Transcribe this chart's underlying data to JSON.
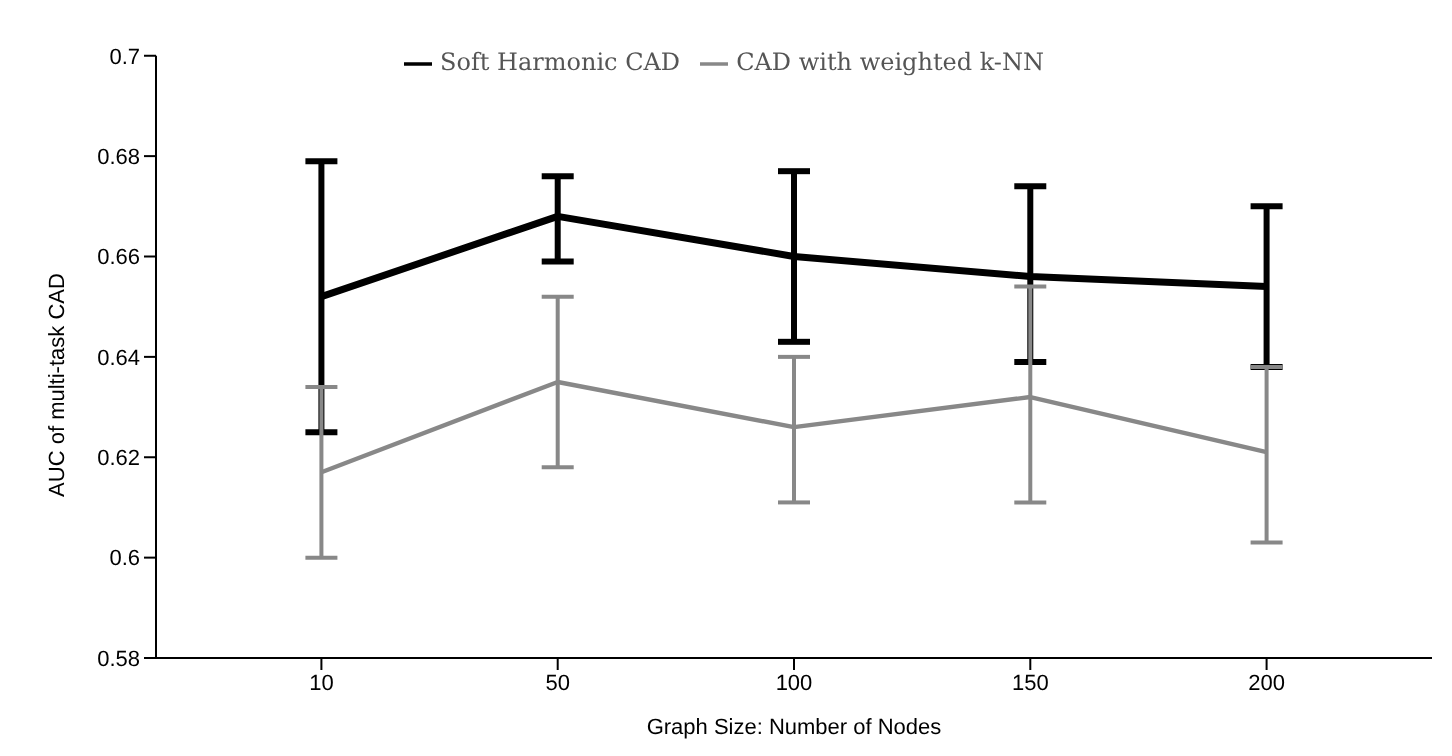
{
  "chart_data": {
    "type": "line",
    "xlabel": "Graph Size: Number of Nodes",
    "ylabel": "AUC of multi-task CAD",
    "categories": [
      "10",
      "50",
      "100",
      "150",
      "200"
    ],
    "series": [
      {
        "name": "Soft Harmonic CAD",
        "color": "#000000",
        "values": [
          0.652,
          0.668,
          0.66,
          0.656,
          0.654
        ],
        "errors": [
          [
            0.625,
            0.679
          ],
          [
            0.659,
            0.676
          ],
          [
            0.643,
            0.677
          ],
          [
            0.639,
            0.674
          ],
          [
            0.638,
            0.67
          ]
        ]
      },
      {
        "name": "CAD with weighted k-NN",
        "color": "#888888",
        "values": [
          0.617,
          0.635,
          0.626,
          0.632,
          0.621
        ],
        "errors": [
          [
            0.6,
            0.634
          ],
          [
            0.618,
            0.652
          ],
          [
            0.611,
            0.64
          ],
          [
            0.611,
            0.654
          ],
          [
            0.603,
            0.638
          ]
        ]
      }
    ],
    "ylim": [
      0.58,
      0.7
    ],
    "yticks": [
      0.58,
      0.6,
      0.62,
      0.64,
      0.66,
      0.68,
      0.7
    ],
    "grid": false,
    "legend": "top",
    "marker": "none",
    "line_style": "solid"
  }
}
